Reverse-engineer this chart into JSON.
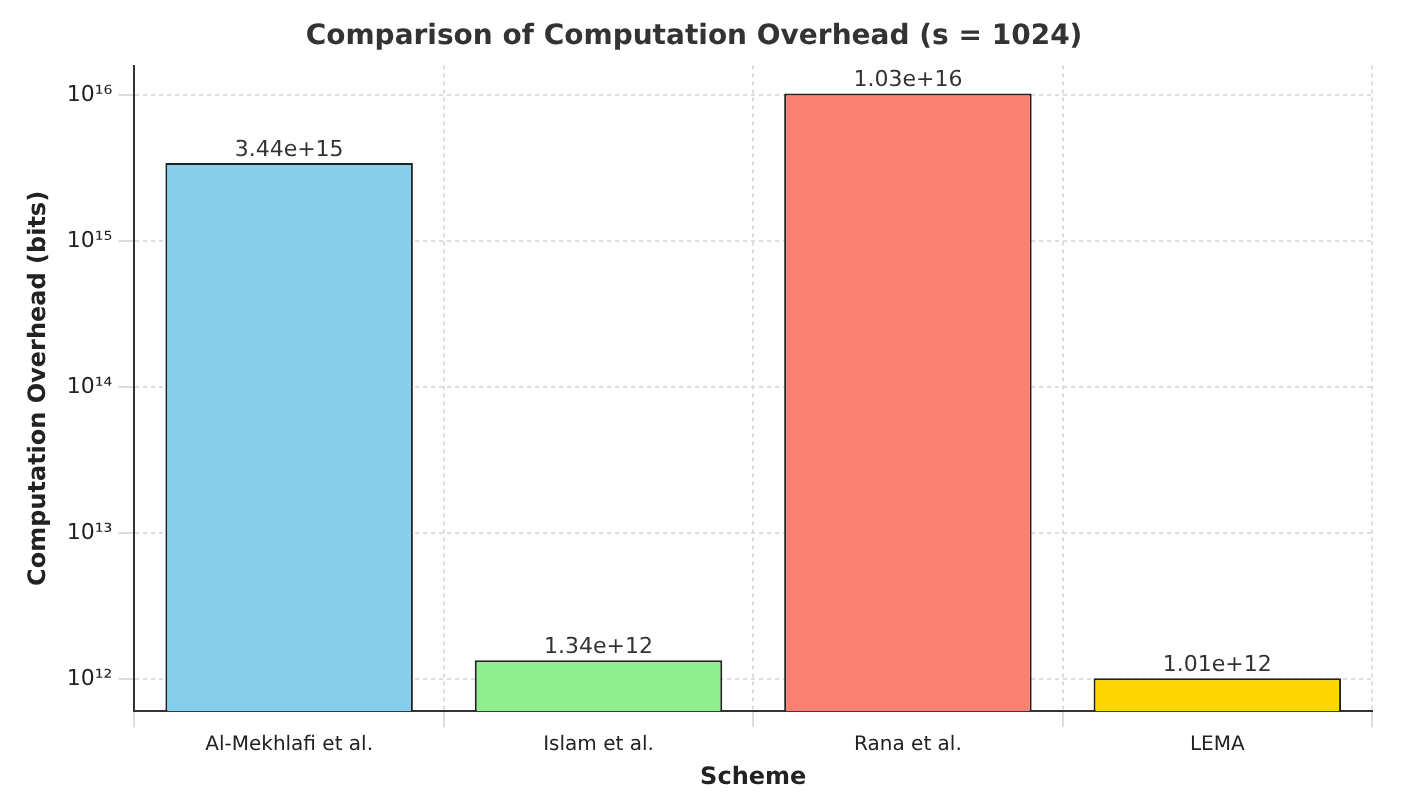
{
  "chart_data": {
    "type": "bar",
    "title": "Comparison of Computation Overhead (s = 1024)",
    "xlabel": "Scheme",
    "ylabel": "Computation Overhead (bits)",
    "categories": [
      "Al-Mekhlafi et al.",
      "Islam et al.",
      "Rana et al.",
      "LEMA"
    ],
    "values": [
      3440000000000000.0,
      1340000000000.0,
      1.03e+16,
      1010000000000.0
    ],
    "colors": [
      "#87ceeb",
      "#90ee90",
      "#fa8072",
      "#ffd700"
    ],
    "value_labels": [
      "3.44e+15",
      "1.34e+12",
      "1.03e+16",
      "1.01e+12"
    ],
    "log": true,
    "ylim": [
      600000000000.0,
      1.6e+16
    ],
    "yticks": [
      {
        "value": 1000000000000.0,
        "label": "10¹²"
      },
      {
        "value": 10000000000000.0,
        "label": "10¹³"
      },
      {
        "value": 100000000000000.0,
        "label": "10¹⁴"
      },
      {
        "value": 1000000000000000.0,
        "label": "10¹⁵"
      },
      {
        "value": 1e+16,
        "label": "10¹⁶"
      }
    ],
    "grid": true
  }
}
